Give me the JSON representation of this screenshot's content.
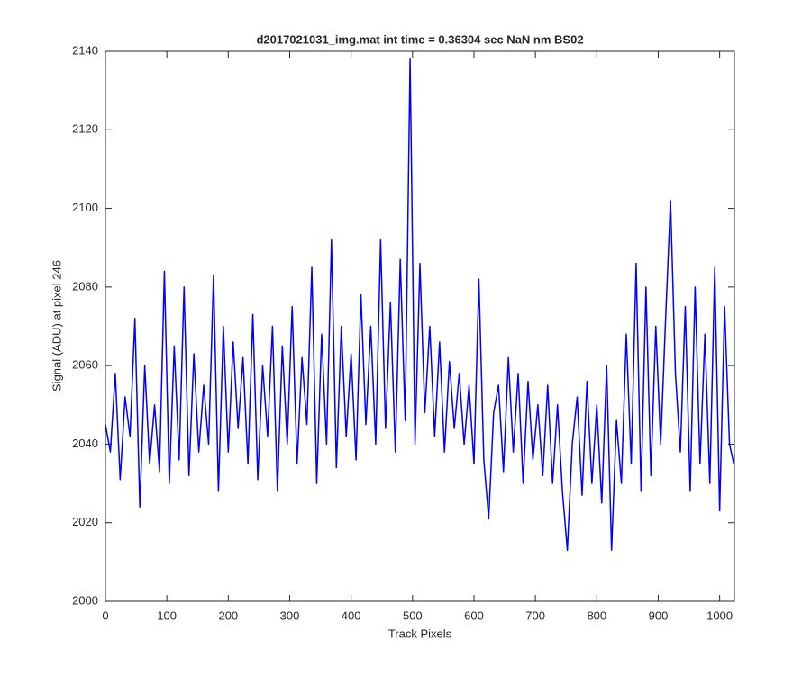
{
  "chart_data": {
    "type": "line",
    "title": "d2017021031_img.mat int time = 0.36304 sec  NaN nm BS02",
    "x_label": "Track Pixels",
    "y_label": "Signal (ADU) at pixel 246",
    "x": [
      0,
      8,
      16,
      24,
      32,
      40,
      48,
      56,
      64,
      72,
      80,
      88,
      96,
      104,
      112,
      120,
      128,
      136,
      144,
      152,
      160,
      168,
      176,
      184,
      192,
      200,
      208,
      216,
      224,
      232,
      240,
      248,
      256,
      264,
      272,
      280,
      288,
      296,
      304,
      312,
      320,
      328,
      336,
      344,
      352,
      360,
      368,
      376,
      384,
      392,
      400,
      408,
      416,
      424,
      432,
      440,
      448,
      456,
      464,
      472,
      480,
      488,
      496,
      504,
      512,
      520,
      528,
      536,
      544,
      552,
      560,
      568,
      576,
      584,
      592,
      600,
      608,
      616,
      624,
      632,
      640,
      648,
      656,
      664,
      672,
      680,
      688,
      696,
      704,
      712,
      720,
      728,
      736,
      744,
      752,
      760,
      768,
      776,
      784,
      792,
      800,
      808,
      816,
      824,
      832,
      840,
      848,
      856,
      864,
      872,
      880,
      888,
      896,
      904,
      912,
      920,
      928,
      936,
      944,
      952,
      960,
      968,
      976,
      984,
      992,
      1000,
      1008,
      1016,
      1023
    ],
    "series": [
      {
        "color": "#0000ff",
        "values": [
          2045,
          2038,
          2058,
          2031,
          2052,
          2042,
          2072,
          2024,
          2060,
          2035,
          2050,
          2033,
          2084,
          2030,
          2065,
          2036,
          2080,
          2032,
          2063,
          2038,
          2055,
          2040,
          2083,
          2028,
          2070,
          2038,
          2066,
          2044,
          2062,
          2035,
          2073,
          2031,
          2060,
          2042,
          2070,
          2028,
          2065,
          2040,
          2075,
          2035,
          2062,
          2045,
          2085,
          2030,
          2068,
          2040,
          2092,
          2034,
          2070,
          2042,
          2063,
          2036,
          2078,
          2045,
          2070,
          2040,
          2092,
          2044,
          2076,
          2038,
          2087,
          2046,
          2138,
          2040,
          2086,
          2048,
          2070,
          2042,
          2066,
          2038,
          2061,
          2044,
          2058,
          2040,
          2055,
          2035,
          2082,
          2036,
          2021,
          2048,
          2055,
          2033,
          2062,
          2038,
          2058,
          2030,
          2056,
          2036,
          2050,
          2032,
          2055,
          2030,
          2050,
          2028,
          2013,
          2040,
          2052,
          2027,
          2056,
          2030,
          2050,
          2025,
          2060,
          2013,
          2046,
          2030,
          2068,
          2035,
          2086,
          2028,
          2080,
          2032,
          2070,
          2040,
          2072,
          2102,
          2058,
          2038,
          2075,
          2028,
          2080,
          2035,
          2068,
          2030,
          2085,
          2023,
          2075,
          2040,
          2035
        ]
      }
    ],
    "xlim": [
      0,
      1024
    ],
    "ylim": [
      2000,
      2140
    ],
    "xticks": [
      0,
      100,
      200,
      300,
      400,
      500,
      600,
      700,
      800,
      900,
      1000
    ],
    "yticks": [
      2000,
      2020,
      2040,
      2060,
      2080,
      2100,
      2120,
      2140
    ]
  }
}
